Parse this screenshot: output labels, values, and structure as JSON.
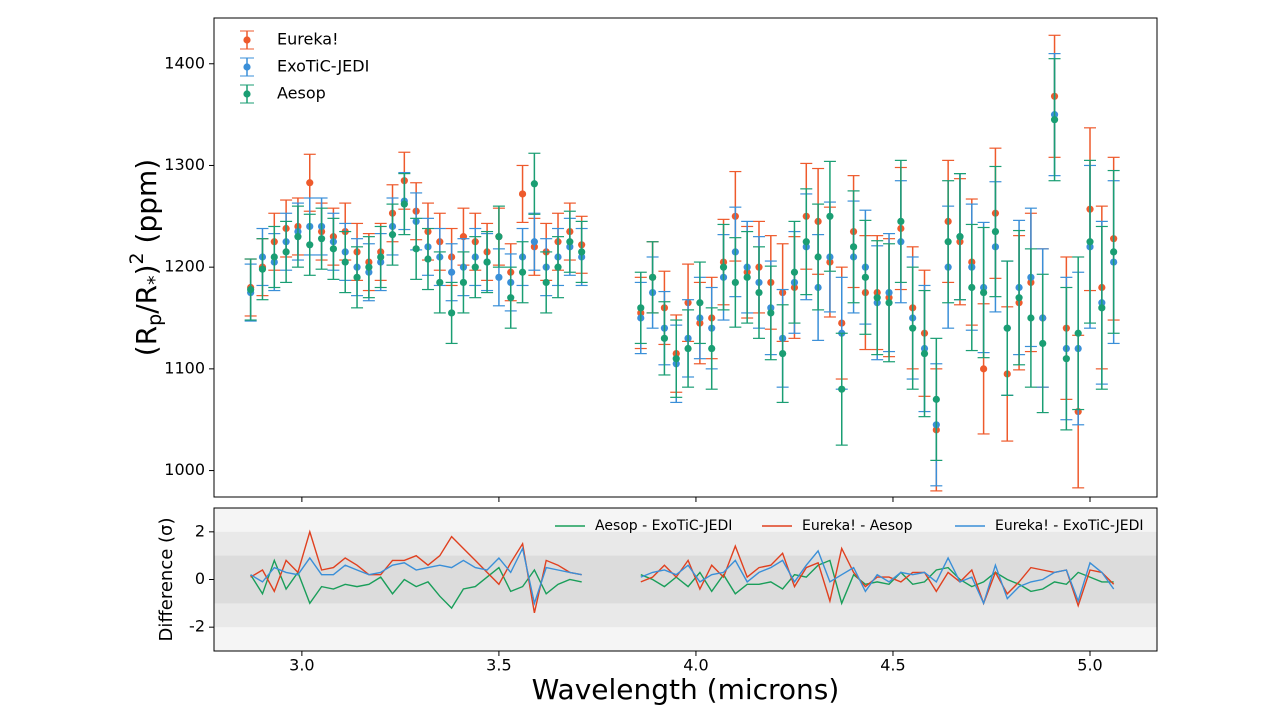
{
  "chart_data": [
    {
      "type": "errorbar",
      "ylabel": [
        "(R",
        "p",
        "/R",
        "*",
        ")",
        "2",
        " (ppm)"
      ],
      "xlim": [
        2.777,
        5.17
      ],
      "ylim": [
        974,
        1445
      ],
      "xticks": [
        {
          "value": 3,
          "label": "3.0"
        },
        3.5,
        {
          "value": 4,
          "label": "4.0"
        },
        4.5,
        {
          "value": 5,
          "label": "5.0"
        }
      ],
      "yticks": [
        1000,
        1100,
        1200,
        1300,
        1400
      ],
      "legend": "upper left",
      "x": [
        2.87,
        2.9,
        2.93,
        2.96,
        2.99,
        3.02,
        3.05,
        3.08,
        3.11,
        3.14,
        3.17,
        3.2,
        3.23,
        3.26,
        3.29,
        3.32,
        3.35,
        3.38,
        3.41,
        3.44,
        3.47,
        3.5,
        3.53,
        3.56,
        3.59,
        3.62,
        3.65,
        3.68,
        3.71,
        3.78,
        3.86,
        3.89,
        3.92,
        3.95,
        3.98,
        4.01,
        4.04,
        4.07,
        4.1,
        4.13,
        4.16,
        4.19,
        4.22,
        4.25,
        4.28,
        4.31,
        4.34,
        4.37,
        4.4,
        4.43,
        4.46,
        4.49,
        4.52,
        4.55,
        4.58,
        4.61,
        4.64,
        4.67,
        4.7,
        4.73,
        4.76,
        4.79,
        4.82,
        4.85,
        4.88,
        4.91,
        4.94,
        4.97,
        5.0,
        5.03,
        5.06
      ],
      "series": [
        {
          "name": "Eureka!",
          "color": "#ee5a2c",
          "values": [
            1180,
            1200,
            1225,
            1238,
            1240,
            1283,
            1235,
            1230,
            1235,
            1215,
            1205,
            1215,
            1253,
            1285,
            1255,
            1235,
            1225,
            1210,
            1230,
            1225,
            1215,
            1230,
            1195,
            1272,
            1220,
            1215,
            1225,
            1235,
            1222,
            null,
            1155,
            1190,
            1160,
            1115,
            1165,
            1145,
            1150,
            1205,
            1250,
            1195,
            1200,
            1185,
            1175,
            1180,
            1250,
            1245,
            1205,
            1145,
            1235,
            1175,
            1175,
            1170,
            1238,
            1160,
            1135,
            1040,
            1245,
            1225,
            1205,
            1100,
            1253,
            1095,
            1165,
            1185,
            1150,
            1368,
            1140,
            1058,
            1257,
            1180,
            1228
          ],
          "errors": [
            28,
            28,
            28,
            28,
            28,
            28,
            28,
            28,
            28,
            28,
            28,
            28,
            28,
            28,
            28,
            28,
            28,
            28,
            28,
            28,
            28,
            28,
            28,
            28,
            28,
            28,
            28,
            28,
            28,
            null,
            35,
            35,
            36,
            38,
            38,
            40,
            40,
            42,
            44,
            45,
            45,
            46,
            48,
            50,
            52,
            52,
            54,
            55,
            55,
            56,
            56,
            58,
            60,
            60,
            62,
            60,
            60,
            62,
            62,
            64,
            64,
            66,
            66,
            68,
            68,
            60,
            70,
            75,
            80,
            80,
            80
          ]
        },
        {
          "name": "ExoTiC-JEDI",
          "color": "#3a8fd8",
          "values": [
            1175,
            1210,
            1205,
            1225,
            1235,
            1240,
            1240,
            1225,
            1215,
            1200,
            1195,
            1205,
            1240,
            1265,
            1245,
            1220,
            1210,
            1195,
            1200,
            1210,
            1205,
            1190,
            1185,
            1210,
            1225,
            1200,
            1210,
            1220,
            1210,
            null,
            1150,
            1175,
            1140,
            1105,
            1130,
            1150,
            1140,
            1190,
            1215,
            1200,
            1185,
            1160,
            1130,
            1185,
            1220,
            1180,
            1210,
            1135,
            1210,
            1200,
            1165,
            1175,
            1225,
            1150,
            1120,
            1045,
            1200,
            1230,
            1200,
            1180,
            1220,
            1140,
            1180,
            1190,
            1150,
            1350,
            1120,
            1120,
            1220,
            1165,
            1205
          ],
          "errors": [
            28,
            28,
            28,
            28,
            28,
            28,
            28,
            28,
            28,
            28,
            28,
            28,
            28,
            28,
            28,
            28,
            28,
            28,
            28,
            28,
            28,
            28,
            28,
            28,
            28,
            28,
            28,
            28,
            28,
            null,
            35,
            35,
            36,
            38,
            38,
            40,
            40,
            42,
            44,
            45,
            45,
            46,
            48,
            50,
            52,
            52,
            54,
            55,
            55,
            56,
            56,
            58,
            60,
            60,
            62,
            60,
            60,
            62,
            62,
            64,
            64,
            66,
            66,
            68,
            68,
            60,
            70,
            75,
            80,
            80,
            80
          ]
        },
        {
          "name": "Aesop",
          "color": "#1a9e73",
          "values": [
            1178,
            1198,
            1210,
            1215,
            1230,
            1222,
            1228,
            1218,
            1205,
            1190,
            1200,
            1210,
            1232,
            1262,
            1218,
            1208,
            1185,
            1155,
            1185,
            1200,
            1205,
            1230,
            1170,
            1195,
            1282,
            1185,
            1200,
            1225,
            1215,
            null,
            1160,
            1190,
            1130,
            1110,
            1120,
            1165,
            1120,
            1200,
            1185,
            1190,
            1175,
            1155,
            1115,
            1195,
            1225,
            1210,
            1250,
            1080,
            1220,
            1190,
            1170,
            1165,
            1245,
            1140,
            1115,
            1070,
            1225,
            1230,
            1180,
            1175,
            1235,
            1140,
            1170,
            1150,
            1125,
            1345,
            1110,
            1135,
            1225,
            1160,
            1215
          ],
          "errors": [
            30,
            30,
            30,
            30,
            30,
            30,
            30,
            30,
            30,
            30,
            30,
            30,
            30,
            30,
            30,
            30,
            30,
            30,
            30,
            30,
            30,
            30,
            30,
            30,
            30,
            30,
            30,
            30,
            30,
            null,
            35,
            35,
            36,
            38,
            38,
            40,
            40,
            42,
            44,
            45,
            45,
            46,
            48,
            50,
            52,
            52,
            54,
            55,
            55,
            56,
            56,
            58,
            60,
            60,
            62,
            60,
            60,
            62,
            62,
            64,
            64,
            66,
            66,
            68,
            68,
            60,
            70,
            75,
            80,
            80,
            80
          ]
        }
      ]
    },
    {
      "type": "line",
      "xlabel": "Wavelength (microns)",
      "ylabel": "Difference (σ)",
      "xlim": [
        2.777,
        5.17
      ],
      "ylim": [
        -3,
        3
      ],
      "xticks": [
        {
          "value": 3,
          "label": "3.0"
        },
        3.5,
        {
          "value": 4,
          "label": "4.0"
        },
        4.5,
        {
          "value": 5,
          "label": "5.0"
        }
      ],
      "yticks": [
        -2,
        0,
        2
      ],
      "bands": [
        2,
        1
      ],
      "legend": "upper right",
      "x": [
        2.87,
        2.9,
        2.93,
        2.96,
        2.99,
        3.02,
        3.05,
        3.08,
        3.11,
        3.14,
        3.17,
        3.2,
        3.23,
        3.26,
        3.29,
        3.32,
        3.35,
        3.38,
        3.41,
        3.44,
        3.47,
        3.5,
        3.53,
        3.56,
        3.59,
        3.62,
        3.65,
        3.68,
        3.71,
        3.78,
        3.86,
        3.89,
        3.92,
        3.95,
        3.98,
        4.01,
        4.04,
        4.07,
        4.1,
        4.13,
        4.16,
        4.19,
        4.22,
        4.25,
        4.28,
        4.31,
        4.34,
        4.37,
        4.4,
        4.43,
        4.46,
        4.49,
        4.52,
        4.55,
        4.58,
        4.61,
        4.64,
        4.67,
        4.7,
        4.73,
        4.76,
        4.79,
        4.82,
        4.85,
        4.88,
        4.91,
        4.94,
        4.97,
        5.0,
        5.03,
        5.06
      ],
      "series": [
        {
          "name": "Aesop - ExoTiC-JEDI",
          "color": "#1a9e5a",
          "values": [
            0.2,
            -0.6,
            0.8,
            -0.4,
            0.3,
            -1.0,
            -0.3,
            -0.4,
            -0.2,
            -0.3,
            -0.2,
            0.1,
            -0.6,
            0.0,
            -0.3,
            -0.1,
            -0.7,
            -1.2,
            -0.4,
            -0.3,
            0.1,
            0.5,
            -0.5,
            -0.3,
            0.4,
            -0.6,
            -0.2,
            0.0,
            -0.1,
            null,
            0.2,
            0.0,
            -0.3,
            0.1,
            -0.3,
            0.3,
            -0.5,
            0.2,
            -0.6,
            -0.2,
            -0.2,
            -0.1,
            -0.4,
            0.2,
            0.1,
            0.6,
            0.8,
            -1.0,
            0.2,
            -0.2,
            -0.1,
            -0.2,
            0.3,
            -0.2,
            -0.1,
            0.4,
            0.5,
            0.0,
            -0.3,
            -0.1,
            0.3,
            0.0,
            -0.2,
            -0.5,
            -0.4,
            -0.1,
            -0.2,
            0.3,
            0.1,
            -0.1,
            -0.1
          ]
        },
        {
          "name": "Eureka! - Aesop",
          "color": "#e0401f",
          "values": [
            0.1,
            0.4,
            -0.5,
            0.8,
            0.3,
            2.0,
            0.4,
            0.5,
            0.9,
            0.6,
            0.2,
            0.2,
            0.8,
            0.8,
            1.0,
            0.6,
            1.0,
            1.8,
            1.3,
            0.8,
            0.3,
            -0.2,
            0.7,
            1.5,
            -1.4,
            0.8,
            0.6,
            0.3,
            0.2,
            null,
            -0.1,
            0.1,
            0.6,
            0.1,
            0.8,
            -0.4,
            0.6,
            0.1,
            1.4,
            0.1,
            0.5,
            0.6,
            1.1,
            -0.3,
            0.5,
            0.7,
            -0.9,
            1.3,
            0.3,
            -0.3,
            0.1,
            0.1,
            -0.1,
            0.3,
            0.3,
            -0.5,
            0.3,
            -0.1,
            0.4,
            -1.0,
            0.3,
            -0.6,
            -0.1,
            0.5,
            0.4,
            0.3,
            0.4,
            -1.1,
            0.4,
            0.3,
            -0.2
          ]
        },
        {
          "name": "Eureka! - ExoTiC-JEDI",
          "color": "#3a8fd8",
          "values": [
            0.2,
            -0.1,
            0.5,
            0.3,
            0.2,
            0.9,
            0.2,
            0.2,
            0.6,
            0.4,
            0.2,
            0.3,
            0.6,
            0.7,
            0.4,
            0.5,
            0.6,
            0.5,
            0.8,
            0.5,
            0.4,
            0.9,
            0.3,
            1.3,
            -1.0,
            0.5,
            0.4,
            0.3,
            0.2,
            null,
            0.1,
            0.3,
            0.4,
            0.2,
            0.6,
            -0.1,
            0.2,
            0.3,
            0.8,
            -0.1,
            0.3,
            0.5,
            0.8,
            -0.1,
            0.6,
            1.2,
            -0.1,
            0.2,
            0.5,
            -0.5,
            0.2,
            -0.1,
            0.3,
            0.2,
            0.3,
            -0.1,
            0.9,
            -0.1,
            0.1,
            -1.0,
            0.6,
            -0.8,
            -0.3,
            -0.1,
            0.0,
            0.3,
            0.4,
            -0.9,
            0.7,
            0.3,
            -0.4
          ]
        }
      ]
    }
  ]
}
